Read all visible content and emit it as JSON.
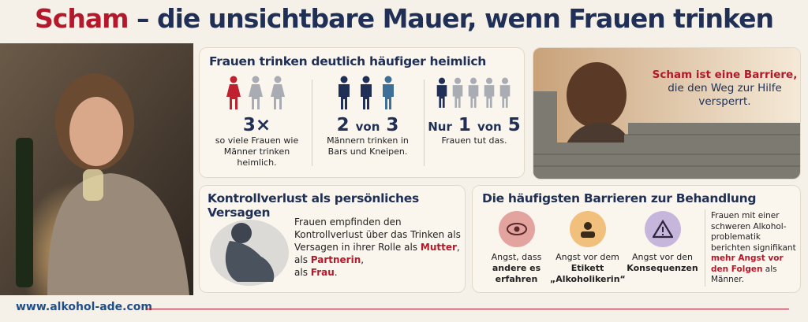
{
  "header": {
    "title_highlight": "Scham",
    "title_rest": "– die unsichtbare Mauer, wenn Frauen trinken"
  },
  "secrecy": {
    "title": "Frauen trinken deutlich häufiger heimlich",
    "stats": [
      {
        "parts": [
          "3×"
        ],
        "text": "so viele Frauen wie Männer trinken heimlich."
      },
      {
        "parts": [
          "2",
          "von",
          "3"
        ],
        "text": "Männern trinken in Bars und Kneipen."
      },
      {
        "parts": [
          "Nur",
          "1",
          "von",
          "5"
        ],
        "text": "Frauen tut das."
      }
    ]
  },
  "barrier_quote": {
    "highlight": "Scham ist eine Barriere,",
    "text": "die den Weg zur Hilfe versperrt."
  },
  "failure": {
    "title": "Kontrollverlust als persönliches Versagen",
    "text_parts": [
      "Frauen empfinden den Kontrollverlust über das Trinken als Versagen in ihrer Rolle als ",
      "Mutter",
      ", als ",
      "Partnerin",
      ",",
      " als ",
      "Frau",
      "."
    ]
  },
  "barriers": {
    "title": "Die häufigsten Barrieren zur Behandlung",
    "items": [
      {
        "lead": "Angst, dass",
        "highlight": "andere es erfahren"
      },
      {
        "lead": "Angst vor dem",
        "highlight": "Etikett „Alkoholikerin“"
      },
      {
        "lead": "Angst vor den",
        "highlight": "Konsequenzen"
      }
    ],
    "note_parts": [
      "Frauen mit einer schweren Alkohol-problematik berichten signifikant ",
      "mehr Angst vor den Folgen",
      " als Männer."
    ]
  },
  "footer": {
    "url": "www.alkohol-ade.com"
  }
}
